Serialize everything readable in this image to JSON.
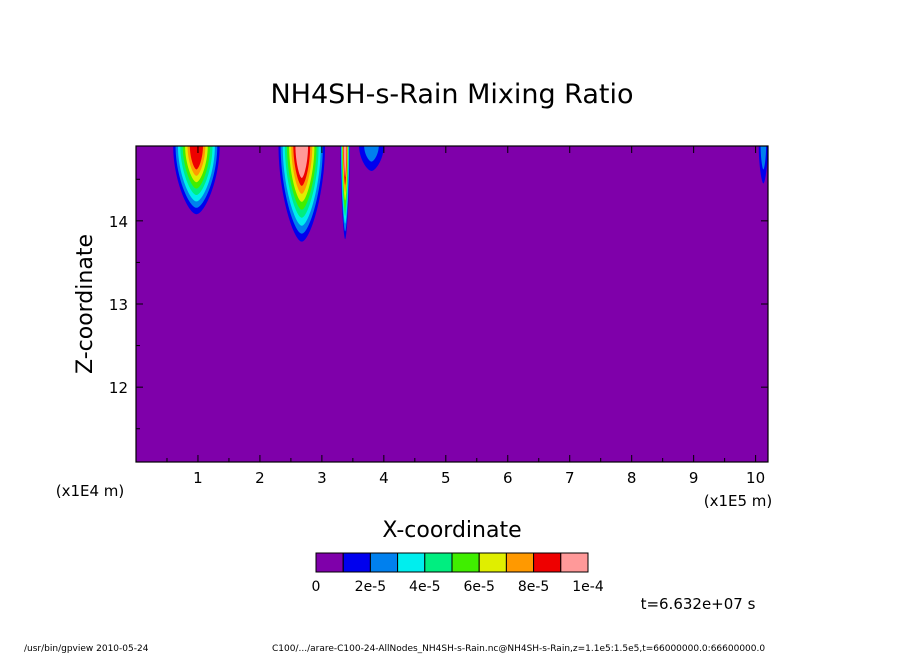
{
  "chart_data": {
    "type": "contour",
    "title": "NH4SH-s-Rain Mixing Ratio",
    "xlabel": "X-coordinate",
    "ylabel": "Z-coordinate",
    "x_unit_label": "(x1E5 m)",
    "y_unit_label": "(x1E4 m)",
    "xlim": [
      0,
      10.2
    ],
    "ylim": [
      11.1,
      14.9
    ],
    "xticks": [
      1,
      2,
      3,
      4,
      5,
      6,
      7,
      8,
      9,
      10
    ],
    "yticks": [
      12,
      13,
      14
    ],
    "background_color": "#7f00aa",
    "colorbar": {
      "levels": [
        {
          "color": "#7f00aa"
        },
        {
          "color": "#0000ee"
        },
        {
          "color": "#0080ee"
        },
        {
          "color": "#00eeee"
        },
        {
          "color": "#00ee80"
        },
        {
          "color": "#40ee00"
        },
        {
          "color": "#e0ee00"
        },
        {
          "color": "#ff9900"
        },
        {
          "color": "#ee0000"
        },
        {
          "color": "#ff9999"
        }
      ],
      "labels": [
        "0",
        "2e-5",
        "4e-5",
        "6e-5",
        "8e-5",
        "1e-4"
      ]
    },
    "plumes": [
      {
        "x0": 0.6,
        "x1": 1.35,
        "z_bottom": 14.08,
        "peak": 8e-05
      },
      {
        "x0": 2.3,
        "x1": 3.05,
        "z_bottom": 13.75,
        "peak": 9e-05
      },
      {
        "x0": 3.3,
        "x1": 3.45,
        "z_bottom": 13.78,
        "peak": 0.0001
      },
      {
        "x0": 3.6,
        "x1": 4.0,
        "z_bottom": 14.6,
        "peak": 2e-05
      },
      {
        "x0": 10.05,
        "x1": 10.2,
        "z_bottom": 14.45,
        "peak": 2e-05
      }
    ],
    "time_label": "t=6.632e+07 s"
  },
  "footer": {
    "program": "/usr/bin/gpview  2010-05-24",
    "source": "C100/.../arare-C100-24-AllNodes_NH4SH-s-Rain.nc@NH4SH-s-Rain,z=1.1e5:1.5e5,t=66000000.0:66600000.0"
  }
}
